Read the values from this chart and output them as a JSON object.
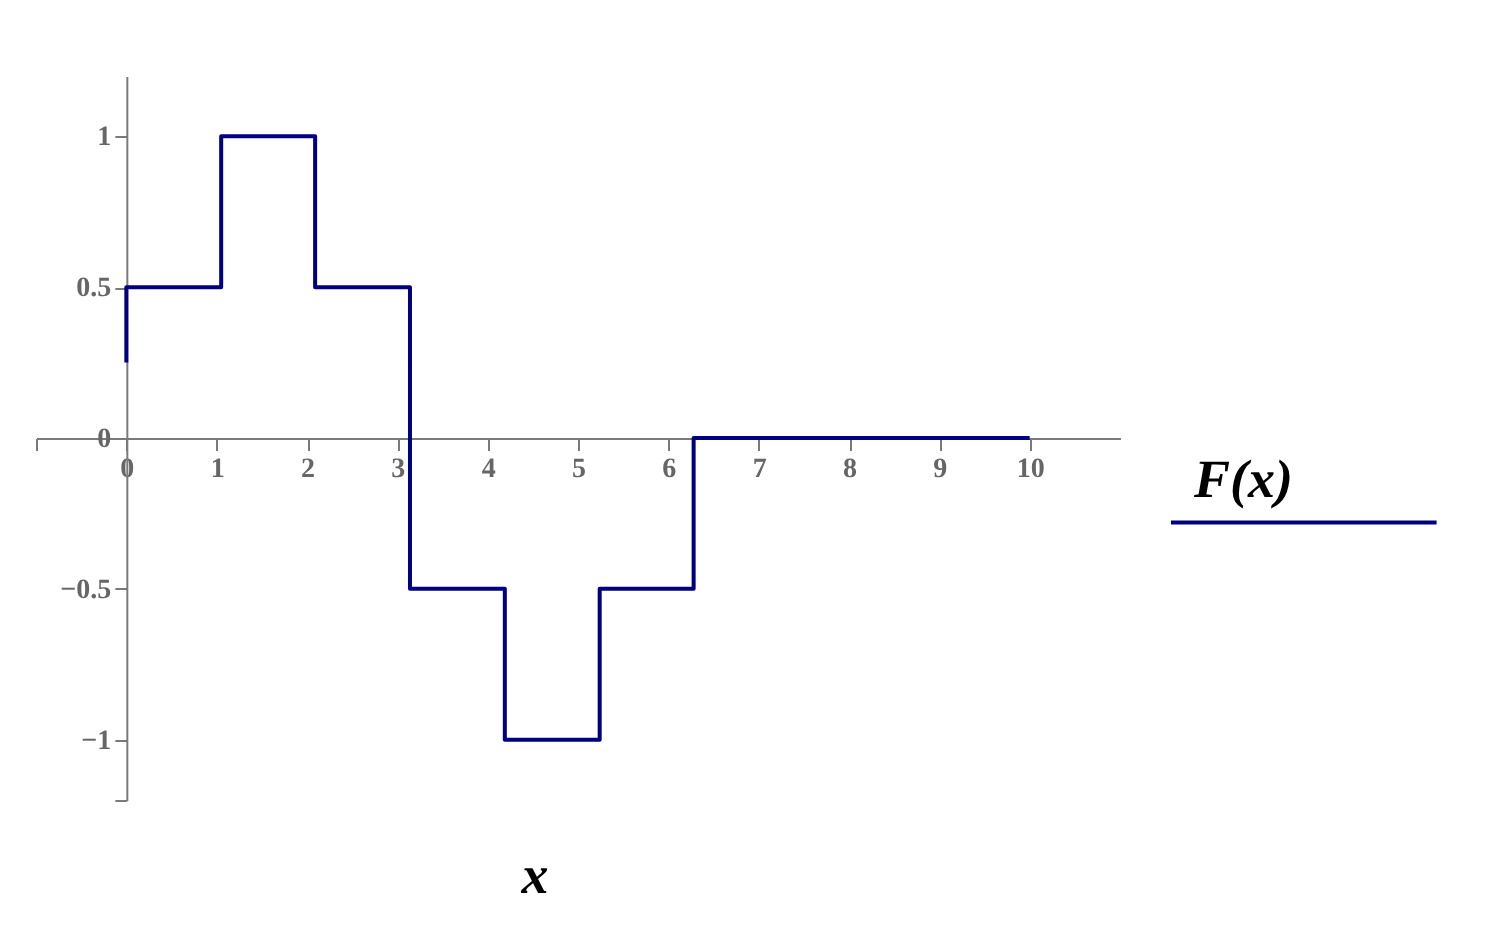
{
  "chart_data": {
    "type": "line",
    "xlabel": "x",
    "xlim": [
      -1,
      11
    ],
    "xticks": [
      {
        "value": -1,
        "label": null
      },
      0,
      1,
      2,
      3,
      4,
      5,
      6,
      7,
      8,
      9,
      10
    ],
    "ylim": [
      -1.2,
      1.2
    ],
    "yticks": [
      {
        "value": -1.2,
        "label": null
      },
      -1,
      -0.5,
      0,
      0.5,
      1
    ],
    "grid": false,
    "legend": "right",
    "series": [
      {
        "name": "F(x)",
        "color": "#000080",
        "x": [
          0,
          0,
          1.05,
          1.05,
          2.09,
          2.09,
          3.14,
          3.14,
          4.19,
          4.19,
          5.24,
          5.24,
          6.28,
          6.28,
          10
        ],
        "values": [
          0.25,
          0.5,
          0.5,
          1,
          1,
          0.5,
          0.5,
          -0.5,
          -0.5,
          -1,
          -1,
          -0.5,
          -0.5,
          0,
          0
        ]
      }
    ]
  }
}
